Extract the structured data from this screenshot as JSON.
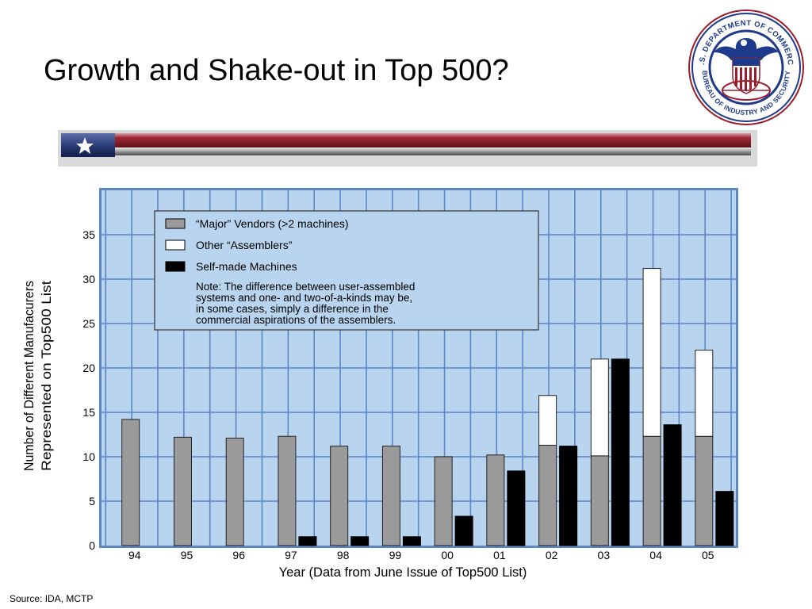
{
  "slide": {
    "title": "Growth and Shake-out in Top 500?",
    "source": "Source: IDA, MCTP"
  },
  "seal": {
    "top_text": "U.S. DEPARTMENT OF COMMERCE",
    "bottom_text": "BUREAU OF INDUSTRY AND SECURITY"
  },
  "colors": {
    "major": "#9a9a9a",
    "other": "#ffffff",
    "self": "#000000",
    "plot_bg": "#b8d4ee",
    "grid": "#5b87c5",
    "banner_red": "#8b1a2b",
    "banner_blue": "#2b3d7a"
  },
  "chart_data": {
    "type": "bar",
    "xlabel": "Year (Data from June Issue of Top500 List)",
    "ylabel_lines": [
      "Number of Different Manufacurers",
      "Represented on Top500 List"
    ],
    "ylim": [
      0,
      40
    ],
    "yticks": [
      0,
      5,
      10,
      15,
      20,
      25,
      30,
      35
    ],
    "categories": [
      "94",
      "95",
      "96",
      "97",
      "98",
      "99",
      "00",
      "01",
      "02",
      "03",
      "04",
      "05"
    ],
    "series": [
      {
        "name": "“Major” Vendors (>2 machines)",
        "stack": "left",
        "values": [
          14.2,
          12.2,
          12.1,
          12.3,
          11.2,
          11.2,
          10.0,
          10.2,
          11.3,
          10.1,
          12.3,
          12.3
        ]
      },
      {
        "name": "Other “Assemblers”",
        "stack": "left",
        "values": [
          0,
          0,
          0,
          0,
          0,
          0,
          0,
          0,
          5.6,
          10.9,
          18.9,
          9.7
        ]
      },
      {
        "name": "Self-made Machines",
        "stack": "right",
        "values": [
          0,
          0,
          0,
          1,
          1,
          1,
          3.3,
          8.4,
          11.2,
          21,
          13.6,
          6.1
        ]
      }
    ],
    "legend": {
      "placement": "top-left",
      "note": [
        "Note: The difference between user-assembled",
        "systems and one- and two-of-a-kinds may be,",
        "in some cases, simply a difference in the",
        "commercial aspirations of the assemblers."
      ]
    },
    "grid": true
  }
}
